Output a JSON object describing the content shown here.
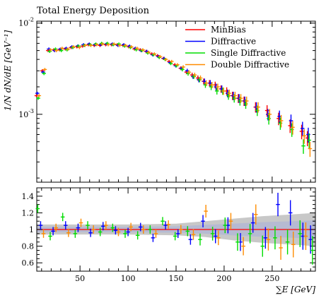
{
  "chart_data": [
    {
      "type": "scatter",
      "panel": "main",
      "title": "Total Energy Deposition",
      "ylabel": "1/N dN/dE [GeV^-1]",
      "yscale": "log",
      "ylim": [
        0.00018,
        0.0105
      ],
      "xlim": [
        5,
        295
      ],
      "yticks": [
        {
          "value": 0.01,
          "label": "10^-2"
        },
        {
          "value": 0.001,
          "label": "10^-3"
        }
      ],
      "legend_position": "top-right",
      "series": [
        {
          "name": "MinBias",
          "color": "#ff0000",
          "x": [
            6,
            12,
            18,
            24,
            30,
            36,
            42,
            48,
            54,
            60,
            66,
            72,
            78,
            84,
            90,
            96,
            102,
            108,
            114,
            120,
            126,
            132,
            138,
            144,
            150,
            156,
            162,
            168,
            174,
            180,
            186,
            192,
            198,
            204,
            210,
            216,
            222,
            234,
            246,
            258,
            270,
            282,
            288
          ],
          "y": [
            0.0016,
            0.003,
            0.005,
            0.0051,
            0.0051,
            0.0052,
            0.0054,
            0.0055,
            0.0056,
            0.0058,
            0.0057,
            0.0057,
            0.0058,
            0.0058,
            0.0058,
            0.0057,
            0.0055,
            0.0052,
            0.0051,
            0.0049,
            0.0046,
            0.0044,
            0.0041,
            0.0038,
            0.0035,
            0.0032,
            0.0029,
            0.0027,
            0.0025,
            0.0023,
            0.0022,
            0.0021,
            0.0019,
            0.0018,
            0.0016,
            0.0015,
            0.0014,
            0.0012,
            0.0011,
            0.0009,
            0.00075,
            0.00065,
            0.00055
          ]
        },
        {
          "name": "Diffractive",
          "color": "#0000ff",
          "x": [
            6,
            12,
            18,
            24,
            30,
            36,
            42,
            48,
            54,
            60,
            66,
            72,
            78,
            84,
            90,
            96,
            102,
            108,
            114,
            120,
            126,
            132,
            138,
            144,
            150,
            156,
            162,
            168,
            174,
            180,
            186,
            192,
            198,
            204,
            210,
            216,
            222,
            234,
            246,
            258,
            270,
            282,
            288
          ],
          "y": [
            0.0017,
            0.0029,
            0.0052,
            0.005,
            0.0052,
            0.0053,
            0.0055,
            0.0056,
            0.0058,
            0.0059,
            0.0058,
            0.0058,
            0.0059,
            0.0059,
            0.0057,
            0.0058,
            0.0056,
            0.0053,
            0.005,
            0.0049,
            0.0045,
            0.0043,
            0.0041,
            0.0037,
            0.0034,
            0.0032,
            0.003,
            0.0026,
            0.0024,
            0.0023,
            0.0022,
            0.002,
            0.0019,
            0.0017,
            0.0016,
            0.0015,
            0.0014,
            0.0012,
            0.001,
            0.00095,
            0.00085,
            0.0007,
            0.0006
          ]
        },
        {
          "name": "Single Diffractive",
          "color": "#00dd00",
          "x": [
            6,
            12,
            18,
            24,
            30,
            36,
            42,
            48,
            54,
            60,
            66,
            72,
            78,
            84,
            90,
            96,
            102,
            108,
            114,
            120,
            126,
            132,
            138,
            144,
            150,
            156,
            162,
            168,
            174,
            180,
            186,
            192,
            198,
            204,
            210,
            216,
            222,
            234,
            246,
            258,
            270,
            282,
            288
          ],
          "y": [
            0.0015,
            0.0028,
            0.0049,
            0.0052,
            0.005,
            0.0051,
            0.0054,
            0.0056,
            0.0057,
            0.0058,
            0.0059,
            0.006,
            0.006,
            0.0058,
            0.0059,
            0.0056,
            0.0054,
            0.0051,
            0.005,
            0.0047,
            0.0045,
            0.0042,
            0.004,
            0.0036,
            0.0034,
            0.0031,
            0.0028,
            0.0026,
            0.0024,
            0.0021,
            0.002,
            0.0018,
            0.0018,
            0.0016,
            0.0015,
            0.0014,
            0.0013,
            0.0011,
            0.0009,
            0.0008,
            0.00068,
            0.00045,
            0.00052
          ]
        },
        {
          "name": "Double Diffractive",
          "color": "#ff8c00",
          "x": [
            6,
            12,
            18,
            24,
            30,
            36,
            42,
            48,
            54,
            60,
            66,
            72,
            78,
            84,
            90,
            96,
            102,
            108,
            114,
            120,
            126,
            132,
            138,
            144,
            150,
            156,
            162,
            168,
            174,
            180,
            186,
            192,
            198,
            204,
            210,
            216,
            222,
            234,
            246,
            258,
            270,
            282,
            288
          ],
          "y": [
            0.0016,
            0.0031,
            0.0051,
            0.005,
            0.0053,
            0.0052,
            0.0055,
            0.0054,
            0.0057,
            0.0057,
            0.0058,
            0.0059,
            0.0058,
            0.0059,
            0.0057,
            0.0057,
            0.0055,
            0.0053,
            0.0051,
            0.0048,
            0.0046,
            0.0043,
            0.004,
            0.0038,
            0.0035,
            0.0033,
            0.0029,
            0.0027,
            0.0025,
            0.0022,
            0.0021,
            0.002,
            0.0018,
            0.0017,
            0.0016,
            0.0015,
            0.0014,
            0.0012,
            0.001,
            0.00085,
            0.00072,
            0.00058,
            0.00042
          ]
        }
      ]
    },
    {
      "type": "scatter",
      "panel": "ratio",
      "xlabel": "∑E [GeV]",
      "xlim": [
        5,
        295
      ],
      "ylim": [
        0.5,
        1.5
      ],
      "xticks": [
        50,
        100,
        150,
        200,
        250
      ],
      "yticks": [
        0.6,
        0.8,
        1,
        1.2,
        1.4
      ],
      "band": {
        "x": [
          5,
          50,
          100,
          150,
          180,
          210,
          240,
          270,
          295
        ],
        "lower": [
          0.94,
          0.94,
          0.94,
          0.93,
          0.91,
          0.87,
          0.84,
          0.82,
          0.8
        ],
        "upper": [
          1.06,
          1.06,
          1.06,
          1.07,
          1.1,
          1.13,
          1.16,
          1.18,
          1.2
        ]
      },
      "series": [
        {
          "name": "Diffractive",
          "color": "#0000ff",
          "x": [
            9,
            22,
            35,
            48,
            61,
            74,
            87,
            100,
            113,
            126,
            139,
            152,
            165,
            178,
            191,
            204,
            217,
            230,
            243,
            256,
            269,
            282,
            290
          ],
          "y": [
            1.05,
            0.98,
            1.05,
            1.02,
            0.96,
            1.04,
            0.99,
            0.97,
            1.03,
            0.9,
            1.05,
            0.95,
            0.88,
            1.1,
            0.92,
            1.05,
            0.85,
            1.08,
            0.9,
            1.3,
            1.2,
            0.92,
            0.88
          ]
        },
        {
          "name": "Single Diffractive",
          "color": "#00dd00",
          "x": [
            6,
            19,
            32,
            45,
            58,
            71,
            84,
            97,
            110,
            123,
            136,
            149,
            162,
            175,
            188,
            201,
            214,
            227,
            240,
            253,
            266,
            279,
            292
          ],
          "y": [
            1.25,
            0.92,
            1.15,
            0.95,
            1.05,
            0.97,
            1.02,
            0.95,
            0.93,
            1.0,
            1.1,
            0.92,
            0.98,
            0.88,
            0.95,
            1.05,
            0.85,
            0.95,
            0.8,
            0.9,
            0.85,
            0.95,
            0.75
          ]
        },
        {
          "name": "Double Diffractive",
          "color": "#ff8c00",
          "x": [
            12,
            25,
            38,
            51,
            64,
            77,
            90,
            103,
            116,
            129,
            142,
            155,
            168,
            181,
            194,
            207,
            220,
            233,
            246,
            259,
            272,
            285
          ],
          "y": [
            0.95,
            1.02,
            0.96,
            1.08,
            1.0,
            1.05,
            0.97,
            1.03,
            1.0,
            0.95,
            1.06,
            1.0,
            0.94,
            1.22,
            0.9,
            1.1,
            0.8,
            1.18,
            0.88,
            0.78,
            0.82,
            0.92
          ]
        }
      ]
    }
  ]
}
